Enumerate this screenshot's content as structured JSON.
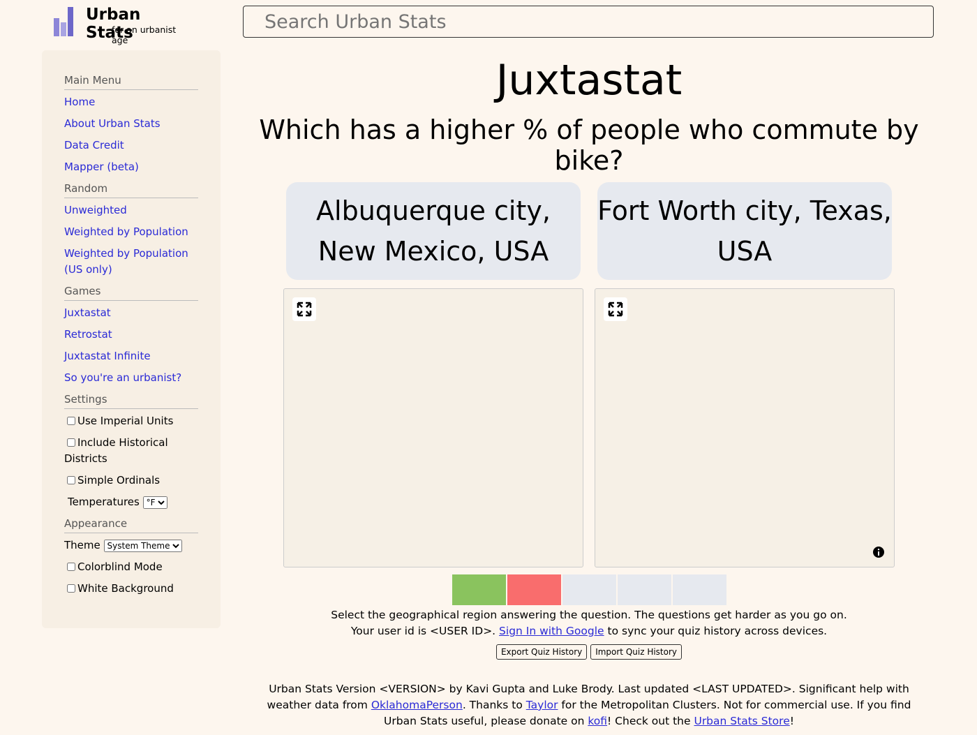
{
  "header": {
    "logo_title": "Urban Stats",
    "logo_subtitle": "for an urbanist age",
    "search_placeholder": "Search Urban Stats"
  },
  "sidebar": {
    "sections": [
      {
        "title": "Main Menu",
        "links": [
          "Home",
          "About Urban Stats",
          "Data Credit",
          "Mapper (beta)"
        ]
      },
      {
        "title": "Random",
        "links": [
          "Unweighted",
          "Weighted by Population",
          "Weighted by Population (US only)"
        ]
      },
      {
        "title": "Games",
        "links": [
          "Juxtastat",
          "Retrostat",
          "Juxtastat Infinite",
          "So you're an urbanist?"
        ]
      }
    ],
    "settings": {
      "title": "Settings",
      "checkboxes": [
        "Use Imperial Units",
        "Include Historical Districts",
        "Simple Ordinals"
      ],
      "temperatures_label": "Temperatures",
      "temperatures_value": "°F"
    },
    "appearance": {
      "title": "Appearance",
      "theme_label": "Theme",
      "theme_value": "System Theme",
      "checkboxes": [
        "Colorblind Mode",
        "White Background"
      ]
    }
  },
  "main": {
    "title": "Juxtastat",
    "question": "Which has a higher % of people who commute by bike?",
    "options": [
      "Albuquerque city, New Mexico, USA",
      "Fort Worth city, Texas, USA"
    ],
    "progress_colors": [
      "#8ac35e",
      "#f96d6d",
      "#e6e9ef",
      "#e6e9ef",
      "#e6e9ef"
    ],
    "instructions": "Select the geographical region answering the question. The questions get harder as you go on.",
    "user_id_prefix": "Your user id is <USER ID>.",
    "sign_in": "Sign In with Google",
    "user_id_suffix": "to sync your quiz history across devices.",
    "buttons": [
      "Export Quiz History",
      "Import Quiz History"
    ]
  },
  "footer": {
    "parts": [
      {
        "text": "Urban Stats Version <VERSION> by Kavi Gupta and Luke Brody. Last updated <LAST UPDATED>. Significant help with weather data from "
      },
      {
        "link": "OklahomaPerson"
      },
      {
        "text": ". Thanks to "
      },
      {
        "link": "Taylor"
      },
      {
        "text": " for the Metropolitan Clusters. Not for commercial use. If you find Urban Stats useful, please donate on "
      },
      {
        "link": "kofi"
      },
      {
        "text": "! Check out the "
      },
      {
        "link": "Urban Stats Store"
      },
      {
        "text": "!"
      }
    ]
  }
}
